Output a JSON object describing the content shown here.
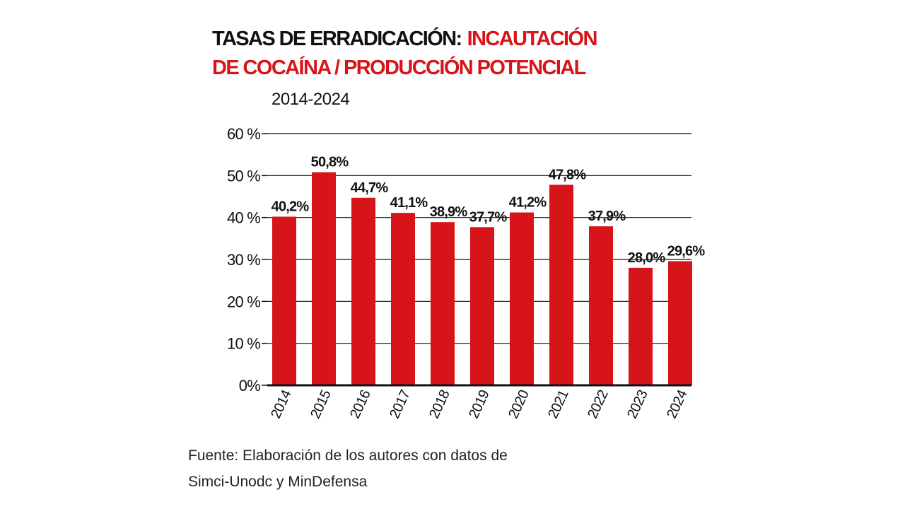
{
  "chart_data": {
    "type": "bar",
    "title": [
      {
        "text": "TASAS DE ERRADICACIÓN:",
        "color": "#111111"
      },
      {
        "text": "INCAUTACIÓN",
        "color": "#d7141a"
      },
      {
        "text": "DE COCAÍNA / PRODUCCIÓN POTENCIAL",
        "color": "#d7141a"
      }
    ],
    "subtitle": "2014-2024",
    "categories": [
      "2014",
      "2015",
      "2016",
      "2017",
      "2018",
      "2019",
      "2020",
      "2021",
      "2022",
      "2023",
      "2024"
    ],
    "values": [
      40.2,
      50.8,
      44.7,
      41.1,
      38.9,
      37.7,
      41.2,
      47.8,
      37.9,
      28.0,
      29.6
    ],
    "value_labels": [
      "40,2%",
      "50,8%",
      "44,7%",
      "41,1%",
      "38,9%",
      "37,7%",
      "41,2%",
      "47,8%",
      "37,9%",
      "28,0%",
      "29,6%"
    ],
    "color": "#d7141a",
    "ylim": [
      0,
      60
    ],
    "yticks": [
      {
        "value": 0,
        "label": "0%"
      },
      {
        "value": 10,
        "label": "10 %"
      },
      {
        "value": 20,
        "label": "20 %"
      },
      {
        "value": 30,
        "label": "30 %"
      },
      {
        "value": 40,
        "label": "40 %"
      },
      {
        "value": 50,
        "label": "50 %"
      },
      {
        "value": 60,
        "label": "60 %"
      }
    ],
    "grid": true,
    "source": [
      "Fuente: Elaboración de los autores con datos de",
      "Simci-Unodc y MinDefensa"
    ]
  }
}
